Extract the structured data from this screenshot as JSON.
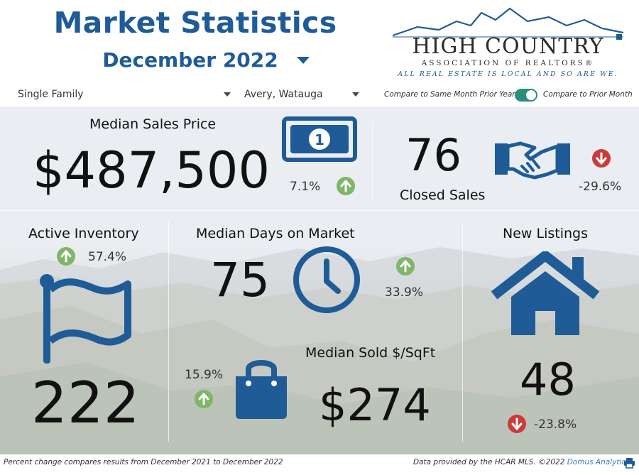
{
  "header": {
    "title": "Market Statistics",
    "month": "December 2022"
  },
  "logo": {
    "name": "HIGH COUNTRY",
    "subtitle": "ASSOCIATION OF REALTORS®",
    "tagline": "ALL REAL ESTATE IS LOCAL AND SO ARE WE."
  },
  "filters": {
    "property_type": "Single Family",
    "county": "Avery, Watauga",
    "compare_left": "Compare to Same Month Prior Year",
    "compare_right": "Compare to Prior Month",
    "toggle_on": true
  },
  "metrics": {
    "median_sales_price": {
      "label": "Median Sales Price",
      "value": "$487,500",
      "change": "7.1%",
      "direction": "up"
    },
    "closed_sales": {
      "label": "Closed Sales",
      "value": "76",
      "change": "-29.6%",
      "direction": "down"
    },
    "active_inventory": {
      "label": "Active Inventory",
      "value": "222",
      "change": "57.4%",
      "direction": "up"
    },
    "median_days_on_market": {
      "label": "Median Days on Market",
      "value": "75",
      "change": "33.9%",
      "direction": "up"
    },
    "new_listings": {
      "label": "New Listings",
      "value": "48",
      "change": "-23.8%",
      "direction": "down"
    },
    "median_sold_sqft": {
      "label": "Median Sold $/SqFt",
      "value": "$274",
      "change": "15.9%",
      "direction": "up"
    }
  },
  "footer": {
    "note": "Percent change compares results from December 2021 to December 2022",
    "source": "Data provided by the HCAR MLS. ©2022 ",
    "source_link": "Domus Analytics"
  },
  "colors": {
    "primary": "#1f5c97",
    "up": "#7fb66a",
    "down": "#cc3b3b",
    "toggle": "#2a8f7c"
  },
  "icons": {
    "price": "money-bill-icon",
    "closed": "handshake-icon",
    "inventory": "flag-icon",
    "days": "clock-icon",
    "listings": "house-icon",
    "sqft": "shopping-bag-icon",
    "print": "print-icon"
  }
}
